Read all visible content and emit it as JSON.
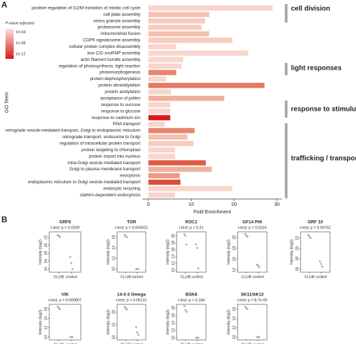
{
  "chart_data": [
    {
      "type": "barh",
      "panel": "A",
      "categories": [
        "positive regulation of G2/M transition of mitotic cell cycle",
        "cell plate assembly",
        "stress granule assembly",
        "proteasome assembly",
        "mitochondrial fission",
        "COP9 signalosome assembly",
        "cellular protein complex disassembly",
        "box C/D snoRNP assembly",
        "actin filament bundle assembly",
        "regulation of photosynthesis, light reaction",
        "photomorphogenesis",
        "protein dephosphorylation",
        "protein deneddylation",
        "protein acetylation",
        "acceptance of pollen",
        "response to sucrose",
        "response to glucose",
        "response to cadmium ion",
        "RNA transport",
        "retrograde vesicle-mediated transport, Golgi to endoplasmic reticulum",
        "retrograde transport, endosome to Golgi",
        "regulation of intracellular protein transport",
        "protein targeting to chloroplast",
        "protein import into nucleus",
        "intra-Golgi vesicle-mediated transport",
        "Golgi to plasma membrane transport",
        "exocytosis",
        "endoplasmic reticulum to Golgi vesicle-mediated transport",
        "endocytic recycling",
        "clathrin-dependent endocytosis"
      ],
      "values": [
        29.0,
        14.2,
        13.2,
        12.4,
        14.2,
        19.6,
        6.5,
        23.3,
        8.1,
        7.7,
        6.5,
        4.1,
        27.1,
        5.3,
        17.7,
        5.1,
        5.1,
        5.1,
        3.8,
        10.8,
        9.1,
        10.5,
        6.2,
        6.2,
        13.4,
        14.8,
        7.3,
        7.5,
        19.6,
        6.2
      ],
      "colors": [
        "#f9d5cb",
        "#f5c0b0",
        "#f7cbbd",
        "#f7cbbd",
        "#f5c0b0",
        "#f7cbbd",
        "#f9d5cb",
        "#f9d5cb",
        "#f9d5cb",
        "#f9d5cb",
        "#e8836d",
        "#f9d5cb",
        "#e27a63",
        "#f9d5cb",
        "#f0b09e",
        "#f9d5cb",
        "#f9d5cb",
        "#d7191c",
        "#f9d5cb",
        "#e6876f",
        "#f5c0b0",
        "#f7cbbd",
        "#f9d5cb",
        "#f9d5cb",
        "#de5a43",
        "#f0b09e",
        "#ea9a85",
        "#dc4d38",
        "#f9d5cb",
        "#f9d5cb"
      ],
      "xlim": [
        -1.4,
        31.2
      ],
      "xticks": [
        0,
        10,
        20,
        30
      ],
      "xlabel": "Fold Enrichment",
      "ylabel": "GO Term",
      "groups": [
        {
          "label": "cell division"
        },
        {
          "label": "light responses"
        },
        {
          "label": "response to stimulus"
        },
        {
          "label": "trafficking / transport"
        }
      ],
      "legend": {
        "title": "P-value adjusted",
        "log": true,
        "lim": [
          0.002,
          1.6e-14
        ],
        "colors": [
          "#fde0dd",
          "#d7191c"
        ],
        "ticks": [
          {
            "value": 0.0001,
            "label": "1e-04"
          },
          {
            "value": 1e-08,
            "label": "1e-08"
          },
          {
            "value": 1e-12,
            "label": "1e-12"
          }
        ]
      }
    },
    {
      "type": "strip",
      "panel": "B",
      "title": "GRF6",
      "subtitle": "t-test; p = 0.0209",
      "ylabel": "Intensity (log2)",
      "categories": [
        "CLUB",
        "control"
      ],
      "color": "#aaaaaa",
      "ylim": [
        13.2,
        23.4
      ],
      "yticks": [
        14,
        16,
        18,
        20,
        22
      ],
      "values": [
        [
          22.6,
          22.4,
          22.1
        ],
        [
          17.0,
          15.5,
          14.0
        ]
      ]
    },
    {
      "type": "strip",
      "title": "TOR",
      "subtitle": "t-test; p = 0.000521",
      "ylabel": "Intensity (log2)",
      "categories": [
        "CLUB",
        "control"
      ],
      "color": "#aaaaaa",
      "ylim": [
        9.4,
        17.0
      ],
      "yticks": [
        10,
        12,
        14,
        16
      ],
      "values": [
        [
          16.4,
          16.2,
          16.0
        ],
        [
          10.0,
          10.0,
          10.0
        ]
      ]
    },
    {
      "type": "strip",
      "title": "ROC1",
      "subtitle": "t-test; p = 0.21",
      "ylabel": "Intensity (log2)",
      "categories": [
        "CLUB",
        "control"
      ],
      "color": "#aaaaaa",
      "ylim": [
        9.4,
        21.2
      ],
      "yticks": [
        10,
        12,
        14,
        16,
        18,
        20
      ],
      "values": [
        [
          20.5,
          20.0,
          17.5
        ],
        [
          17.5,
          16.5,
          10.5
        ]
      ]
    },
    {
      "type": "strip",
      "title": "GF14 PHI",
      "subtitle": "t-test; p = 0.0116",
      "ylabel": "Intensity (log2)",
      "categories": [
        "CLUB",
        "control"
      ],
      "color": "#aaaaaa",
      "ylim": [
        13.6,
        21.0
      ],
      "yticks": [
        14,
        16,
        18,
        20
      ],
      "values": [
        [
          20.6,
          20.3,
          20.1
        ],
        [
          15.0,
          14.8,
          14.5
        ]
      ]
    },
    {
      "type": "strip",
      "title": "GRF 10",
      "subtitle": "t-test; p = 0.00752",
      "ylabel": "Intensity (log2)",
      "categories": [
        "CLUB",
        "control"
      ],
      "color": "#aaaaaa",
      "ylim": [
        15.4,
        23.2
      ],
      "yticks": [
        16,
        18,
        20,
        22
      ],
      "values": [
        [
          22.6,
          22.3,
          22.0
        ],
        [
          17.5,
          17.0,
          16.5
        ]
      ]
    },
    {
      "type": "strip",
      "title": "VIK",
      "subtitle": "t-test; p = 0.000807",
      "ylabel": "Intensity (log2)",
      "categories": [
        "CLUB",
        "control"
      ],
      "color": "#aaaaaa",
      "ylim": [
        9.4,
        17.0
      ],
      "yticks": [
        10,
        12,
        14,
        16
      ],
      "values": [
        [
          16.5,
          16.2,
          16.0
        ],
        [
          10.0,
          10.0,
          10.0
        ]
      ]
    },
    {
      "type": "strip",
      "title": "14-3-3 Omega",
      "subtitle": "t-test; p = 0.00131",
      "ylabel": "Intensity (log2)",
      "categories": [
        "CLUB",
        "control"
      ],
      "color": "#aaaaaa",
      "ylim": [
        9.0,
        23.0
      ],
      "yticks": [
        10,
        15,
        20
      ],
      "values": [
        [
          22.0,
          21.5,
          21.0
        ],
        [
          14.0,
          12.0,
          11.0
        ]
      ]
    },
    {
      "type": "strip",
      "title": "BSK8",
      "subtitle": "t-test; p = 0.184",
      "ylabel": "Intensity (log2)",
      "categories": [
        "CLUB",
        "control"
      ],
      "color": "#aaaaaa",
      "ylim": [
        9.4,
        19.0
      ],
      "yticks": [
        10,
        12,
        14,
        16,
        18
      ],
      "values": [
        [
          18.5,
          17.5,
          17.0
        ],
        [
          10.0,
          10.0,
          10.0
        ]
      ]
    },
    {
      "type": "strip",
      "title": "SK11/SK12",
      "subtitle": "t-test; p = 8.7e-05",
      "ylabel": "Intensity (log2)",
      "categories": [
        "CLUB",
        "control"
      ],
      "color": "#aaaaaa",
      "ylim": [
        9.4,
        17.0
      ],
      "yticks": [
        10,
        12,
        14,
        16
      ],
      "values": [
        [
          16.5,
          16.2,
          16.0
        ],
        [
          10.0,
          10.0,
          10.0
        ]
      ]
    }
  ]
}
